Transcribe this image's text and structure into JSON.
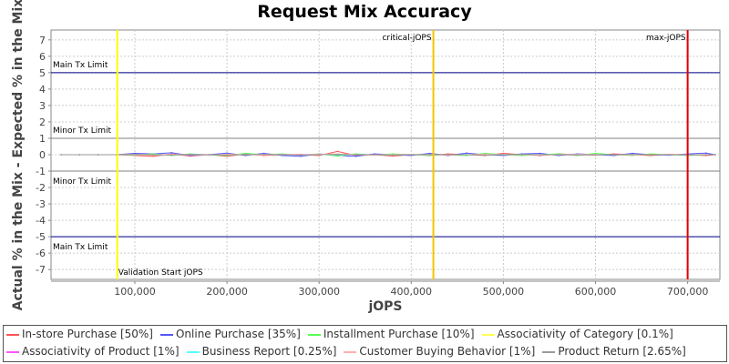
{
  "chart_data": {
    "type": "line",
    "title": "Request Mix Accuracy",
    "xlabel": "jOPS",
    "ylabel": "Actual % in the Mix - Expected % in the Mix",
    "xlim": [
      9000,
      735000
    ],
    "ylim": [
      -7.6,
      7.6
    ],
    "xticks": [
      100000,
      200000,
      300000,
      400000,
      500000,
      600000,
      700000
    ],
    "xtick_labels": [
      "100,000",
      "200,000",
      "300,000",
      "400,000",
      "500,000",
      "600,000",
      "700,000"
    ],
    "yticks": [
      -7,
      -6,
      -5,
      -4,
      -3,
      -2,
      -1,
      0,
      1,
      2,
      3,
      4,
      5,
      6,
      7
    ],
    "grid": true,
    "legend_position": "bottom",
    "hlines": [
      {
        "y": 5,
        "label": "Main Tx Limit",
        "color": "#00008b"
      },
      {
        "y": 1,
        "label": "Minor Tx Limit",
        "color": "#808080"
      },
      {
        "y": -1,
        "label": "Minor Tx Limit",
        "color": "#808080"
      },
      {
        "y": -5,
        "label": "Main Tx Limit",
        "color": "#00008b"
      }
    ],
    "vlines": [
      {
        "x": 81000,
        "label": "Validation Start jOPS",
        "color": "#ffff00"
      },
      {
        "x": 424000,
        "label": "critical-jOPS",
        "color": "#f5c400"
      },
      {
        "x": 700000,
        "label": "max-jOPS",
        "color": "#e00000"
      }
    ],
    "x": [
      20000,
      40000,
      60000,
      80000,
      100000,
      120000,
      140000,
      160000,
      180000,
      200000,
      220000,
      240000,
      260000,
      280000,
      300000,
      320000,
      340000,
      360000,
      380000,
      400000,
      420000,
      440000,
      460000,
      480000,
      500000,
      520000,
      540000,
      560000,
      580000,
      600000,
      620000,
      640000,
      660000,
      680000,
      700000,
      720000,
      730000
    ],
    "series": [
      {
        "name": "In-store Purchase [50%]",
        "color": "#ff5555",
        "values": [
          0,
          0,
          0,
          0,
          -0.05,
          -0.1,
          0.05,
          -0.08,
          0,
          -0.1,
          0.05,
          -0.05,
          0,
          0.02,
          -0.05,
          0.2,
          -0.05,
          0,
          -0.08,
          0,
          -0.05,
          0.05,
          0,
          -0.05,
          0.08,
          0,
          -0.05,
          0.05,
          0,
          -0.03,
          0.05,
          0,
          -0.05,
          0.02,
          0,
          -0.05,
          0
        ]
      },
      {
        "name": "Online Purchase [35%]",
        "color": "#5555ff",
        "values": [
          0,
          0,
          0,
          0,
          0.08,
          0.05,
          0.12,
          -0.05,
          0,
          0.1,
          -0.05,
          0.08,
          -0.05,
          -0.1,
          0.05,
          -0.05,
          -0.1,
          0.05,
          0,
          -0.05,
          0.08,
          -0.05,
          0.1,
          0,
          -0.05,
          0.05,
          0.08,
          -0.05,
          0.05,
          0,
          -0.05,
          0.08,
          0,
          -0.03,
          0.05,
          0.1,
          0
        ]
      },
      {
        "name": "Installment Purchase [10%]",
        "color": "#55ff55",
        "values": [
          0,
          0,
          0,
          0,
          -0.02,
          0.05,
          -0.05,
          0.05,
          -0.02,
          -0.05,
          0.08,
          0,
          0.05,
          -0.03,
          0.05,
          -0.08,
          0.05,
          -0.02,
          0.05,
          0,
          -0.05,
          0,
          -0.05,
          0.08,
          0,
          -0.05,
          0,
          0.05,
          -0.05,
          0.08,
          0,
          -0.05,
          0.05,
          0,
          -0.05,
          0,
          0
        ]
      },
      {
        "name": "Associativity of Category [0.1%]",
        "color": "#ffff55",
        "values": [
          0,
          0,
          0,
          0,
          0,
          0,
          0,
          0,
          0,
          0,
          0,
          0,
          0,
          0,
          0,
          0,
          0,
          0,
          0,
          0,
          0,
          0,
          0,
          0,
          0,
          0,
          0,
          0,
          0,
          0,
          0,
          0,
          0,
          0,
          0,
          0,
          0
        ]
      },
      {
        "name": "Associativity of Product [1%]",
        "color": "#ff55ff",
        "values": [
          0,
          0,
          0,
          0,
          0.01,
          0,
          -0.01,
          0,
          0.01,
          0,
          0,
          -0.01,
          0,
          0.01,
          0,
          0,
          0,
          0.01,
          0,
          0,
          -0.01,
          0,
          0,
          0.01,
          0,
          0,
          0,
          -0.01,
          0,
          0,
          0.01,
          0,
          0,
          0,
          0,
          0,
          0
        ]
      },
      {
        "name": "Business Report [0.25%]",
        "color": "#55ffff",
        "values": [
          0,
          0,
          0,
          0,
          0,
          0,
          0,
          0,
          0,
          0,
          0,
          0,
          0,
          0,
          0,
          0,
          0,
          0,
          0,
          0,
          0,
          0,
          0,
          0,
          0,
          0,
          0,
          0,
          0,
          0,
          0,
          0,
          0,
          0,
          0,
          0,
          0
        ]
      },
      {
        "name": "Customer Buying Behavior [1%]",
        "color": "#ffafaf",
        "values": [
          0,
          0,
          0,
          0,
          0.02,
          -0.03,
          0.02,
          0,
          -0.02,
          0.03,
          0,
          -0.02,
          0.02,
          0,
          0.03,
          0.05,
          0,
          -0.02,
          0,
          0.02,
          0,
          -0.02,
          0,
          0.02,
          0,
          0,
          -0.02,
          0,
          0.02,
          0,
          0,
          -0.02,
          0,
          0.02,
          0,
          0,
          0
        ]
      },
      {
        "name": "Product Return [2.65%]",
        "color": "#999999",
        "values": [
          0,
          0,
          0,
          0,
          0.02,
          0,
          -0.02,
          0.02,
          0,
          -0.02,
          0,
          0.02,
          0,
          -0.02,
          0,
          0.02,
          0,
          0,
          -0.02,
          0,
          0.02,
          0,
          0,
          -0.02,
          0,
          0.02,
          0,
          0,
          -0.02,
          0,
          0,
          0.02,
          0,
          0,
          -0.02,
          0,
          0
        ]
      }
    ]
  }
}
